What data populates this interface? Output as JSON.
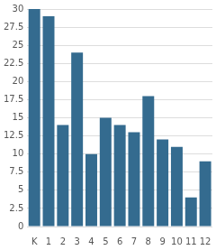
{
  "chart_data": {
    "type": "bar",
    "categories": [
      "K",
      "1",
      "2",
      "3",
      "4",
      "5",
      "6",
      "7",
      "8",
      "9",
      "10",
      "11",
      "12"
    ],
    "values": [
      30,
      29,
      14,
      24,
      10,
      15,
      14,
      13,
      18,
      12,
      11,
      4,
      9
    ],
    "color": "#346b8f",
    "ylim": [
      0,
      30
    ],
    "yticks": [
      0,
      2.5,
      5,
      7.5,
      10,
      12.5,
      15,
      17.5,
      20,
      22.5,
      25,
      27.5,
      30
    ],
    "grid": true
  }
}
